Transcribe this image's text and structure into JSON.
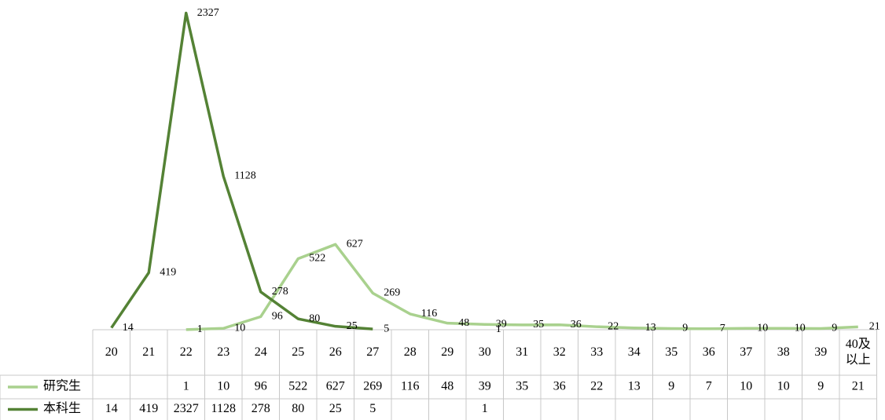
{
  "chart_data": {
    "type": "line",
    "categories": [
      "20",
      "21",
      "22",
      "23",
      "24",
      "25",
      "26",
      "27",
      "28",
      "29",
      "30",
      "31",
      "32",
      "33",
      "34",
      "35",
      "36",
      "37",
      "38",
      "39",
      "40及以上"
    ],
    "series": [
      {
        "name": "研究生",
        "color": "#a9d18e",
        "values": [
          null,
          null,
          1,
          10,
          96,
          522,
          627,
          269,
          116,
          48,
          39,
          35,
          36,
          22,
          13,
          9,
          7,
          10,
          10,
          9,
          21
        ]
      },
      {
        "name": "本科生",
        "color": "#548235",
        "values": [
          14,
          419,
          2327,
          1128,
          278,
          80,
          25,
          5,
          null,
          null,
          1,
          null,
          null,
          null,
          null,
          null,
          null,
          null,
          null,
          null,
          null
        ]
      }
    ],
    "ylim": [
      0,
      2400
    ]
  }
}
